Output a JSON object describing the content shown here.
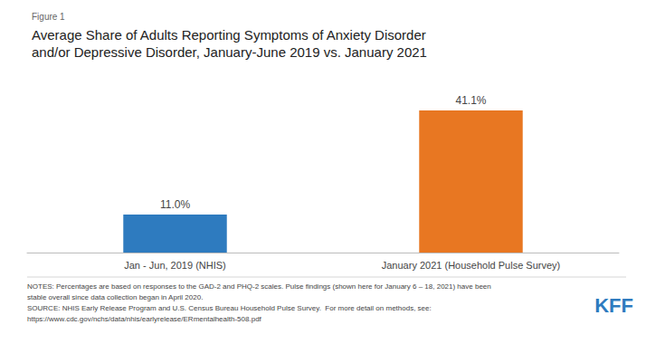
{
  "chart_data": {
    "type": "bar",
    "subtitle": "Figure 1",
    "title": "Average Share of Adults Reporting Symptoms of Anxiety Disorder\nand/or Depressive Disorder, January-June 2019 vs. January 2021",
    "categories": [
      "Jan - Jun, 2019 (NHIS)",
      "January 2021 (Household Pulse Survey)"
    ],
    "values": [
      11.0,
      41.1
    ],
    "value_labels": [
      "11.0%",
      "41.1%"
    ],
    "data_labels": true,
    "colors": [
      "#2e7bbf",
      "#e87722"
    ],
    "ylim": [
      0,
      50
    ],
    "grid": false,
    "tick_labels": "x",
    "annotations": [
      {
        "text": "NOTES: Percentages are based on responses to the GAD-2 and PHQ-2 scales. Pulse findings (shown here for January 6 – 18, 2021) have been"
      },
      {
        "text": "stable overall since data collection began in April 2020."
      },
      {
        "text": "SOURCE: NHIS Early Release Program and U.S. Census Bureau Household Pulse Survey.  For more detail on methods, see:"
      },
      {
        "text": "https://www.cdc.gov/nchs/data/nhis/earlyrelease/ERmentalhealth-508.pdf"
      },
      {
        "text": "KFF",
        "color": "#2e7bbf",
        "logo": true
      }
    ]
  }
}
